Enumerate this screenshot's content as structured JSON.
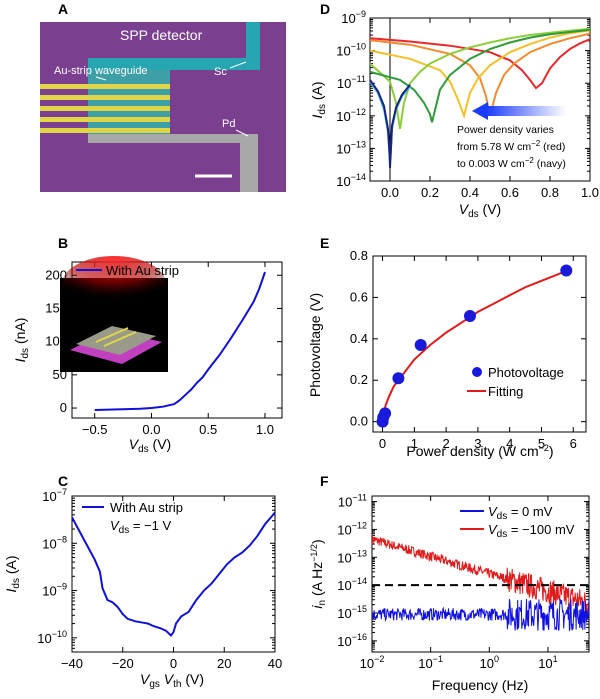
{
  "panels": {
    "A": {
      "letter": "A",
      "title": "SPP detector",
      "labels": [
        "Au-strip waveguide",
        "Sc",
        "Pd"
      ],
      "colors": {
        "substrate": "#7b3f8f",
        "channel": "#3f9fa6",
        "strip": "#e0d447",
        "sc": "#27a6b2",
        "pd": "#a8a8a8"
      }
    },
    "B": {
      "letter": "B"
    },
    "C": {
      "letter": "C"
    },
    "D": {
      "letter": "D"
    },
    "E": {
      "letter": "E"
    },
    "F": {
      "letter": "F"
    }
  },
  "chart_data": [
    {
      "id": "B",
      "type": "line",
      "xlabel_main": "V",
      "xlabel_sub": "ds",
      "xlabel_unit": " (V)",
      "ylabel_main": "I",
      "ylabel_sub": "ds",
      "ylabel_unit": " (nA)",
      "xlim": [
        -0.7,
        1.15
      ],
      "ylim": [
        -15,
        220
      ],
      "xticks": [
        -0.5,
        0.0,
        0.5,
        1.0
      ],
      "xtick_labels": [
        "−0.5",
        "0.0",
        "0.5",
        "1.0"
      ],
      "yticks": [
        0,
        50,
        100,
        150,
        200
      ],
      "ytick_labels": [
        "0",
        "50",
        "100",
        "150",
        "200"
      ],
      "legend": [
        "With Au strip"
      ],
      "color": "#1010d8",
      "x": [
        -0.5,
        -0.3,
        -0.1,
        0.0,
        0.1,
        0.2,
        0.25,
        0.3,
        0.35,
        0.4,
        0.45,
        0.5,
        0.6,
        0.7,
        0.8,
        0.9,
        0.95,
        1.0
      ],
      "y": [
        -3,
        -2,
        -1,
        0,
        2,
        6,
        12,
        20,
        28,
        38,
        46,
        58,
        80,
        105,
        132,
        160,
        180,
        205
      ],
      "inset_colors": {
        "glow": "#ff2a2a",
        "bg": "#000000",
        "base": "#c040c0"
      }
    },
    {
      "id": "C",
      "type": "line",
      "log_y": true,
      "xlabel_main": "V",
      "xlabel_sub1": "gs",
      "xlabel_mid": " V",
      "xlabel_sub2": "th",
      "xlabel_unit": " (V)",
      "ylabel_main": "I",
      "ylabel_sub": "ds",
      "ylabel_unit": " (A)",
      "xlim": [
        -40,
        40
      ],
      "ylim_exp": [
        -10.3,
        -7.0
      ],
      "xticks": [
        -40,
        -20,
        0,
        20,
        40
      ],
      "xtick_labels": [
        "−40",
        "−20",
        "0",
        "20",
        "40"
      ],
      "yticks_exp": [
        -10,
        -9,
        -8,
        -7
      ],
      "legend": [
        "With Au strip"
      ],
      "note_main": "V",
      "note_sub": "ds",
      "note_rest": " = −1 V",
      "color": "#1010d8",
      "x": [
        -40,
        -37,
        -34,
        -31,
        -29,
        -28,
        -26,
        -24,
        -22,
        -20,
        -18,
        -15,
        -12,
        -10,
        -8,
        -5,
        -3,
        -1,
        0,
        1,
        3,
        6,
        9,
        12,
        15,
        18,
        21,
        24,
        27,
        30,
        33,
        36,
        40
      ],
      "y": [
        -7.45,
        -7.75,
        -8.05,
        -8.35,
        -8.6,
        -8.95,
        -9.2,
        -9.25,
        -9.35,
        -9.5,
        -9.6,
        -9.65,
        -9.68,
        -9.7,
        -9.75,
        -9.8,
        -9.85,
        -9.95,
        -9.88,
        -9.7,
        -9.55,
        -9.45,
        -9.2,
        -9.0,
        -8.85,
        -8.65,
        -8.45,
        -8.3,
        -8.2,
        -8.05,
        -7.85,
        -7.6,
        -7.35
      ]
    },
    {
      "id": "D",
      "type": "line",
      "log_y": true,
      "xlabel_main": "V",
      "xlabel_sub": "ds",
      "xlabel_unit": " (V)",
      "ylabel_main": "I",
      "ylabel_sub": "ds",
      "ylabel_unit": " (A)",
      "xlim": [
        -0.1,
        1.0
      ],
      "ylim_exp": [
        -14,
        -9
      ],
      "xticks": [
        0.0,
        0.2,
        0.4,
        0.6,
        0.8,
        1.0
      ],
      "xtick_labels": [
        "0.0",
        "0.2",
        "0.4",
        "0.6",
        "0.8",
        "1.0"
      ],
      "yticks_exp": [
        -14,
        -13,
        -12,
        -11,
        -10,
        -9
      ],
      "annotation": [
        "Power density varies",
        "from 5.78 W cm",
        " (red)",
        "to 0.003 W cm",
        "  (navy)"
      ],
      "annotation_sup": "−2",
      "arrow_color": "#1a3cff",
      "series": [
        {
          "color": "#e8292b",
          "x": [
            -0.1,
            0.1,
            0.3,
            0.5,
            0.6,
            0.66,
            0.7,
            0.73,
            0.76,
            0.8,
            0.85,
            0.9,
            0.95,
            1.0
          ],
          "y": [
            -9.62,
            -9.72,
            -9.85,
            -10.05,
            -10.3,
            -10.6,
            -10.9,
            -11.15,
            -11.0,
            -10.55,
            -10.2,
            -9.95,
            -9.78,
            -9.65
          ]
        },
        {
          "color": "#f28a2e",
          "x": [
            -0.1,
            0.1,
            0.3,
            0.4,
            0.45,
            0.48,
            0.5,
            0.53,
            0.57,
            0.62,
            0.7,
            0.8,
            0.9,
            1.0
          ],
          "y": [
            -9.68,
            -9.82,
            -10.1,
            -10.45,
            -10.85,
            -11.4,
            -12.0,
            -11.3,
            -10.75,
            -10.4,
            -10.05,
            -9.8,
            -9.62,
            -9.48
          ]
        },
        {
          "color": "#f2c12a",
          "x": [
            -0.1,
            0.1,
            0.25,
            0.3,
            0.34,
            0.37,
            0.4,
            0.44,
            0.5,
            0.6,
            0.7,
            0.8,
            0.9,
            1.0
          ],
          "y": [
            -10.0,
            -10.25,
            -10.6,
            -10.95,
            -11.5,
            -12.0,
            -11.3,
            -10.85,
            -10.45,
            -10.05,
            -9.8,
            -9.6,
            -9.47,
            -9.38
          ]
        },
        {
          "color": "#8ccd3a",
          "x": [
            -0.1,
            0.0,
            0.03,
            0.05,
            0.07,
            0.1,
            0.15,
            0.2,
            0.3,
            0.4,
            0.5,
            0.6,
            0.7,
            0.8,
            1.0
          ],
          "y": [
            -10.4,
            -10.95,
            -11.6,
            -12.4,
            -11.6,
            -11.0,
            -10.65,
            -10.4,
            -10.1,
            -9.9,
            -9.75,
            -9.62,
            -9.52,
            -9.45,
            -9.33
          ]
        },
        {
          "color": "#2e9a3a",
          "x": [
            -0.1,
            0.05,
            0.12,
            0.17,
            0.2,
            0.21,
            0.22,
            0.25,
            0.3,
            0.4,
            0.5,
            0.6,
            0.7,
            0.8,
            1.0
          ],
          "y": [
            -10.65,
            -10.9,
            -11.2,
            -11.6,
            -11.95,
            -12.2,
            -11.95,
            -11.2,
            -10.75,
            -10.25,
            -9.95,
            -9.75,
            -9.6,
            -9.5,
            -9.36
          ]
        },
        {
          "color": "#3fb1e0",
          "x": [
            -0.1,
            -0.06,
            -0.03,
            -0.01,
            0.0,
            0.005,
            0.01,
            0.03,
            0.06,
            0.1
          ],
          "y": [
            -10.95,
            -11.3,
            -11.8,
            -12.5,
            -13.4,
            -13.0,
            -12.4,
            -11.8,
            -11.4,
            -11.1
          ]
        },
        {
          "color": "#1a237e",
          "x": [
            -0.1,
            -0.06,
            -0.03,
            -0.01,
            -0.002,
            0.0,
            0.004,
            0.01,
            0.03,
            0.06,
            0.1
          ],
          "y": [
            -10.9,
            -11.25,
            -11.7,
            -12.4,
            -13.2,
            -13.6,
            -13.1,
            -12.3,
            -11.75,
            -11.35,
            -11.05
          ]
        }
      ]
    },
    {
      "id": "E",
      "type": "scatter",
      "xlabel": "Power density (W cm",
      "xlabel_sup": "−2",
      "xlabel_end": ")",
      "ylabel": "Photovoltage (V)",
      "xlim": [
        -0.3,
        6.4
      ],
      "ylim": [
        -0.05,
        0.8
      ],
      "xticks": [
        0,
        1,
        2,
        3,
        4,
        5,
        6
      ],
      "xtick_labels": [
        "0",
        "1",
        "2",
        "3",
        "4",
        "5",
        "6"
      ],
      "yticks": [
        0.0,
        0.2,
        0.4,
        0.6,
        0.8
      ],
      "ytick_labels": [
        "0.0",
        "0.2",
        "0.4",
        "0.6",
        "0.8"
      ],
      "legend": [
        "Photovoltage",
        "Fitting"
      ],
      "point_color": "#1a1adb",
      "fit_color": "#e11b1b",
      "points": {
        "x": [
          0.003,
          0.02,
          0.08,
          0.5,
          1.2,
          2.75,
          5.78
        ],
        "y": [
          0.0,
          0.02,
          0.04,
          0.21,
          0.37,
          0.51,
          0.73
        ]
      },
      "fit": {
        "x": [
          0.0,
          0.05,
          0.1,
          0.2,
          0.35,
          0.5,
          0.75,
          1.0,
          1.5,
          2.0,
          2.5,
          3.0,
          3.5,
          4.0,
          4.5,
          5.0,
          5.5,
          5.8
        ],
        "y": [
          0.0,
          0.05,
          0.08,
          0.12,
          0.17,
          0.2,
          0.25,
          0.3,
          0.37,
          0.43,
          0.48,
          0.53,
          0.57,
          0.61,
          0.65,
          0.68,
          0.71,
          0.73
        ]
      }
    },
    {
      "id": "F",
      "type": "line",
      "log_x": true,
      "log_y": true,
      "xlabel": "Frequency (Hz)",
      "ylabel_main": "i",
      "ylabel_sub": "n",
      "ylabel_unit": " (A Hz",
      "ylabel_sup": "−1/2",
      "ylabel_end": ")",
      "xlim_exp": [
        -2,
        1.7
      ],
      "ylim_exp": [
        -16.4,
        -10.8
      ],
      "xticks_exp": [
        -2,
        -1,
        0,
        1
      ],
      "yticks_exp": [
        -16,
        -15,
        -14,
        -13,
        -12,
        -11
      ],
      "reference_level_exp": -14,
      "legend": [
        {
          "main": "V",
          "sub": "ds",
          "rest": " = 0 mV",
          "color": "#1010e0"
        },
        {
          "main": "V",
          "sub": "ds",
          "rest": " = −100 mV",
          "color": "#e01b1b"
        }
      ]
    }
  ]
}
